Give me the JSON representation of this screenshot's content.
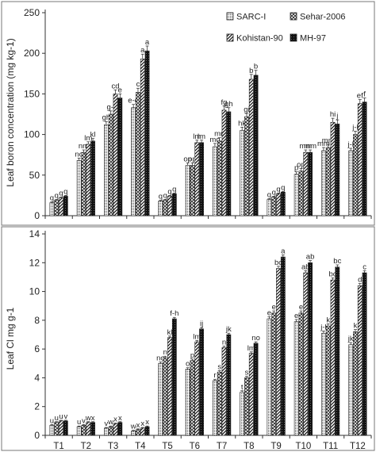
{
  "chart_data": [
    {
      "type": "bar",
      "categories": [
        "T1",
        "T2",
        "T3",
        "T4",
        "T5",
        "T6",
        "T7",
        "T8",
        "T9",
        "T10",
        "T11",
        "T12"
      ],
      "ylabel": "Leaf boron concentration (mg kg-1)",
      "ylim": [
        0,
        250
      ],
      "yticks": [
        0,
        50,
        100,
        150,
        200,
        250
      ],
      "legend": "top-right",
      "series": [
        {
          "name": "SARC-I",
          "pattern": "dotted",
          "values": [
            16,
            68,
            112,
            133,
            18,
            62,
            85,
            105,
            20,
            51,
            80,
            80
          ],
          "errors": [
            1,
            3,
            4,
            4,
            1,
            3,
            4,
            4,
            1,
            3,
            4,
            3
          ],
          "letters": [
            "q",
            "no",
            "gh",
            "e-g",
            "q",
            "op",
            "mo",
            "hk",
            "q",
            "p",
            "mm",
            "j-l"
          ]
        },
        {
          "name": "Sehar-2006",
          "pattern": "crosshatch",
          "values": [
            19,
            78,
            125,
            152,
            19,
            62,
            92,
            122,
            23,
            55,
            84,
            100
          ],
          "errors": [
            1,
            3,
            4,
            5,
            1,
            3,
            4,
            4,
            1,
            3,
            4,
            4
          ],
          "letters": [
            "q",
            "nm",
            "g-i",
            "c",
            "q",
            "op",
            "mn",
            "gi",
            "q",
            "op",
            "mm",
            "j-l"
          ]
        },
        {
          "name": "Kohistan-90",
          "pattern": "diagonal",
          "values": [
            22,
            88,
            150,
            193,
            24,
            90,
            130,
            168,
            27,
            78,
            115,
            138
          ],
          "errors": [
            1,
            3,
            5,
            6,
            1,
            3,
            5,
            6,
            1,
            3,
            5,
            5
          ],
          "letters": [
            "q",
            "lm",
            "cd",
            "a",
            "q",
            "lm",
            "fg",
            "b",
            "q",
            "mm",
            "hi",
            "ef"
          ]
        },
        {
          "name": "MH-97",
          "pattern": "solid",
          "values": [
            24,
            92,
            145,
            203,
            27,
            90,
            128,
            173,
            29,
            78,
            113,
            140
          ],
          "errors": [
            1,
            3,
            5,
            6,
            1,
            3,
            5,
            6,
            1,
            3,
            5,
            5
          ],
          "letters": [
            "q",
            "kl",
            "e",
            "a",
            "q",
            "lm",
            "gh",
            "b",
            "q",
            "mm",
            "j",
            "f"
          ]
        }
      ]
    },
    {
      "type": "bar",
      "categories": [
        "T1",
        "T2",
        "T3",
        "T4",
        "T5",
        "T6",
        "T7",
        "T8",
        "T9",
        "T10",
        "T11",
        "T12"
      ],
      "ylabel": "Leaf Cl mg g-1",
      "ylim": [
        0,
        14
      ],
      "yticks": [
        0,
        2,
        4,
        6,
        8,
        10,
        12,
        14
      ],
      "series": [
        {
          "name": "SARC-I",
          "pattern": "dotted",
          "values": [
            0.7,
            0.6,
            0.5,
            0.3,
            5.0,
            4.6,
            3.8,
            3.0,
            8.1,
            7.9,
            7.1,
            6.3
          ],
          "errors": [
            0.05,
            0.05,
            0.05,
            0.05,
            0.1,
            0.1,
            0.1,
            0.1,
            0.15,
            0.15,
            0.15,
            0.15
          ],
          "letters": [
            "u",
            "u",
            "v",
            "w",
            "no",
            "o",
            "r",
            "t",
            "e",
            "e",
            "j-l",
            "jk"
          ]
        },
        {
          "name": "Sehar-2006",
          "pattern": "crosshatch",
          "values": [
            0.9,
            0.7,
            0.6,
            0.4,
            5.4,
            5.2,
            4.4,
            4.0,
            8.5,
            8.5,
            7.6,
            7.2
          ],
          "errors": [
            0.05,
            0.05,
            0.05,
            0.05,
            0.1,
            0.1,
            0.1,
            0.1,
            0.15,
            0.15,
            0.15,
            0.15
          ],
          "letters": [
            "u",
            "v",
            "w",
            "x",
            "n",
            "p",
            "s",
            "s",
            "e",
            "e",
            "k",
            "k"
          ]
        },
        {
          "name": "Kohistan-90",
          "pattern": "diagonal",
          "values": [
            1.0,
            0.9,
            0.8,
            0.5,
            6.8,
            6.5,
            6.1,
            5.7,
            11.6,
            11.3,
            10.8,
            10.4
          ],
          "errors": [
            0.05,
            0.05,
            0.05,
            0.05,
            0.1,
            0.1,
            0.1,
            0.1,
            0.15,
            0.15,
            0.15,
            0.15
          ],
          "letters": [
            "u",
            "w",
            "x",
            "x",
            "kl",
            "lm",
            "n",
            "lm",
            "bc",
            "ab",
            "bc",
            "d"
          ]
        },
        {
          "name": "MH-97",
          "pattern": "solid",
          "values": [
            1.0,
            0.9,
            0.9,
            0.6,
            8.1,
            7.4,
            7.0,
            6.4,
            12.4,
            12.0,
            11.7,
            11.3
          ],
          "errors": [
            0.05,
            0.05,
            0.05,
            0.05,
            0.1,
            0.1,
            0.1,
            0.1,
            0.15,
            0.15,
            0.15,
            0.15
          ],
          "letters": [
            "v",
            "x",
            "x",
            "x",
            "f-h",
            "ij",
            "jk",
            "no",
            "a",
            "ab",
            "bc",
            "c"
          ]
        }
      ]
    }
  ],
  "colors": {
    "frame": "#777777",
    "bar_stroke": "#222222",
    "solid": "#111111",
    "pattern": "#333333"
  }
}
